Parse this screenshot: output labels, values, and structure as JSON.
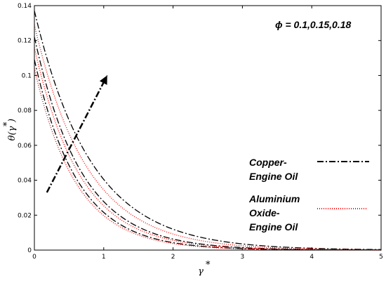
{
  "chart_data": {
    "type": "line",
    "xlabel": "γ",
    "xlabel_sup": "*",
    "ylabel_main": "θ(γ",
    "ylabel_sup": "*",
    "ylabel_close": ")",
    "xlim": [
      0,
      5
    ],
    "ylim": [
      0,
      0.14
    ],
    "x_ticks": [
      "0",
      "1",
      "2",
      "3",
      "4",
      "5"
    ],
    "y_ticks": [
      "0",
      "0.02",
      "0.04",
      "0.06",
      "0.08",
      "0.1",
      "0.12",
      "0.14"
    ],
    "annotation": "ϕ = 0.1,0.15,0.18",
    "arrow": {
      "from": [
        0.18,
        0.033
      ],
      "to": [
        1.05,
        0.1
      ]
    },
    "legend": {
      "placement": "right",
      "entries": [
        {
          "lines": [
            "Copper-",
            "Engine Oil"
          ],
          "color": "#000000",
          "style": "dashdot"
        },
        {
          "lines": [
            "Aluminium",
            "Oxide-",
            "Engine Oil"
          ],
          "color": "#ff0000",
          "style": "dotted"
        }
      ]
    },
    "series": [
      {
        "group": "Copper-Engine Oil",
        "color": "#000000",
        "style": "dashdot",
        "y0": 0.109,
        "rate": 1.62
      },
      {
        "group": "Copper-Engine Oil",
        "color": "#000000",
        "style": "dashdot",
        "y0": 0.122,
        "rate": 1.48
      },
      {
        "group": "Copper-Engine Oil",
        "color": "#000000",
        "style": "dashdot",
        "y0": 0.137,
        "rate": 1.22
      },
      {
        "group": "Aluminium Oxide-Engine Oil",
        "color": "#ff0000",
        "style": "dotted",
        "y0": 0.104,
        "rate": 1.66
      },
      {
        "group": "Aluminium Oxide-Engine Oil",
        "color": "#ff0000",
        "style": "dotted",
        "y0": 0.116,
        "rate": 1.52
      },
      {
        "group": "Aluminium Oxide-Engine Oil",
        "color": "#ff0000",
        "style": "dotted",
        "y0": 0.129,
        "rate": 1.32
      }
    ]
  }
}
